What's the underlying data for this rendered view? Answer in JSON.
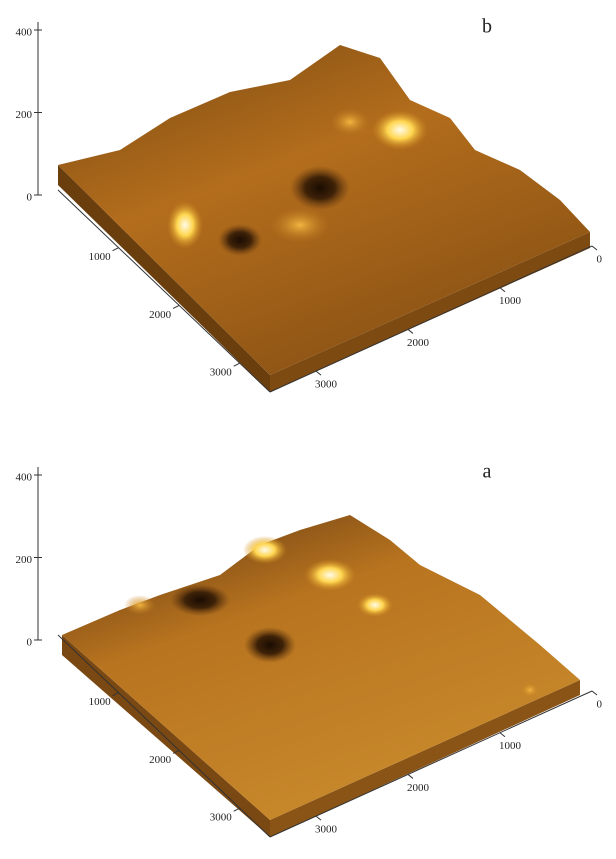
{
  "chart_data": [
    {
      "type": "surface",
      "title": "b",
      "zlim": [
        0,
        400
      ],
      "zticks": [
        0,
        200,
        400
      ],
      "xlim": [
        0,
        3500
      ],
      "xticks": [
        1000,
        2000,
        3000
      ],
      "ylim": [
        0,
        3500
      ],
      "yticks": [
        0,
        1000,
        2000,
        3000
      ]
    },
    {
      "type": "surface",
      "title": "a",
      "zlim": [
        0,
        400
      ],
      "zticks": [
        0,
        200,
        400
      ],
      "xlim": [
        0,
        3500
      ],
      "xticks": [
        1000,
        2000,
        3000
      ],
      "ylim": [
        0,
        3500
      ],
      "yticks": [
        0,
        1000,
        2000,
        3000
      ]
    }
  ]
}
